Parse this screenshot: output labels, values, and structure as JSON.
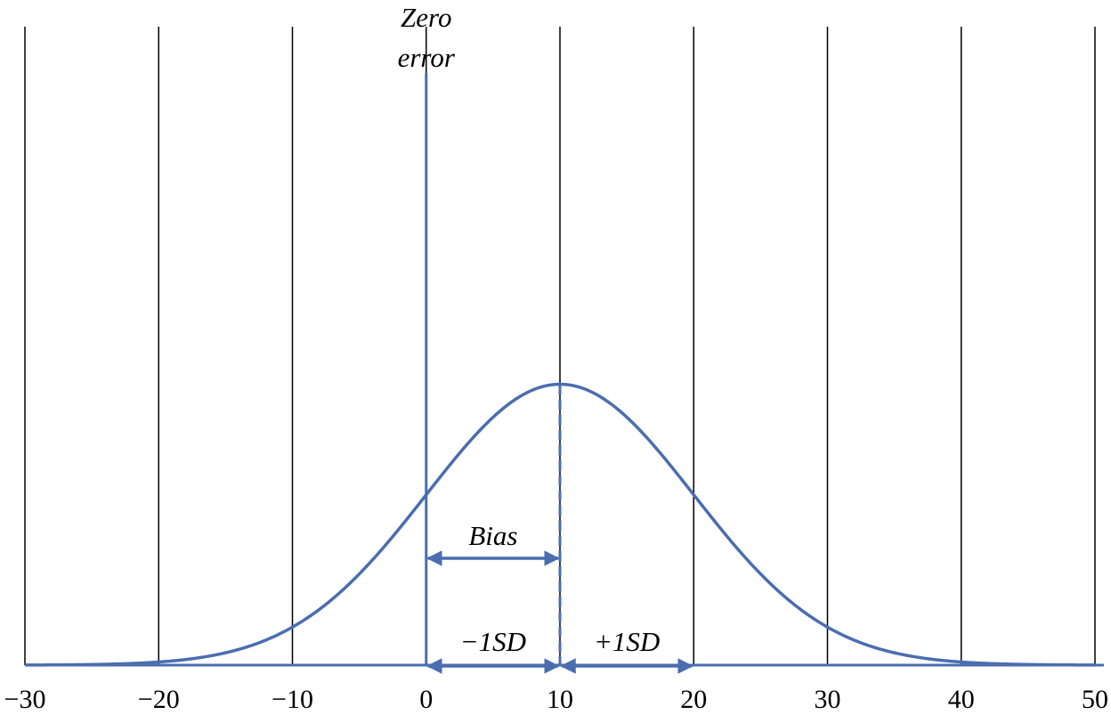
{
  "chart_data": {
    "type": "line",
    "title": "",
    "xlabel": "",
    "ylabel": "",
    "xlim": [
      -30,
      50
    ],
    "x_ticks": [
      -30,
      -20,
      -10,
      0,
      10,
      20,
      30,
      40,
      50
    ],
    "x_tick_labels": [
      "−30",
      "−20",
      "−10",
      "0",
      "10",
      "20",
      "30",
      "40",
      "50"
    ],
    "grid": {
      "vertical": true,
      "horizontal": false
    },
    "curve": {
      "distribution": "normal",
      "mean": 10,
      "sd": 10,
      "relative_peak_height": 0.44
    },
    "colors": {
      "curve": "#4a6db0",
      "grid": "#000000",
      "axis": "#4a6db0"
    },
    "annotations": {
      "zero_error": {
        "x": 0,
        "line1": "Zero",
        "line2": "error"
      },
      "bias": {
        "from": 0,
        "to": 10,
        "label": "Bias"
      },
      "minus_sd": {
        "from": 0,
        "to": 10,
        "label": "−1SD"
      },
      "plus_sd": {
        "from": 10,
        "to": 20,
        "label": "+1SD"
      }
    }
  }
}
